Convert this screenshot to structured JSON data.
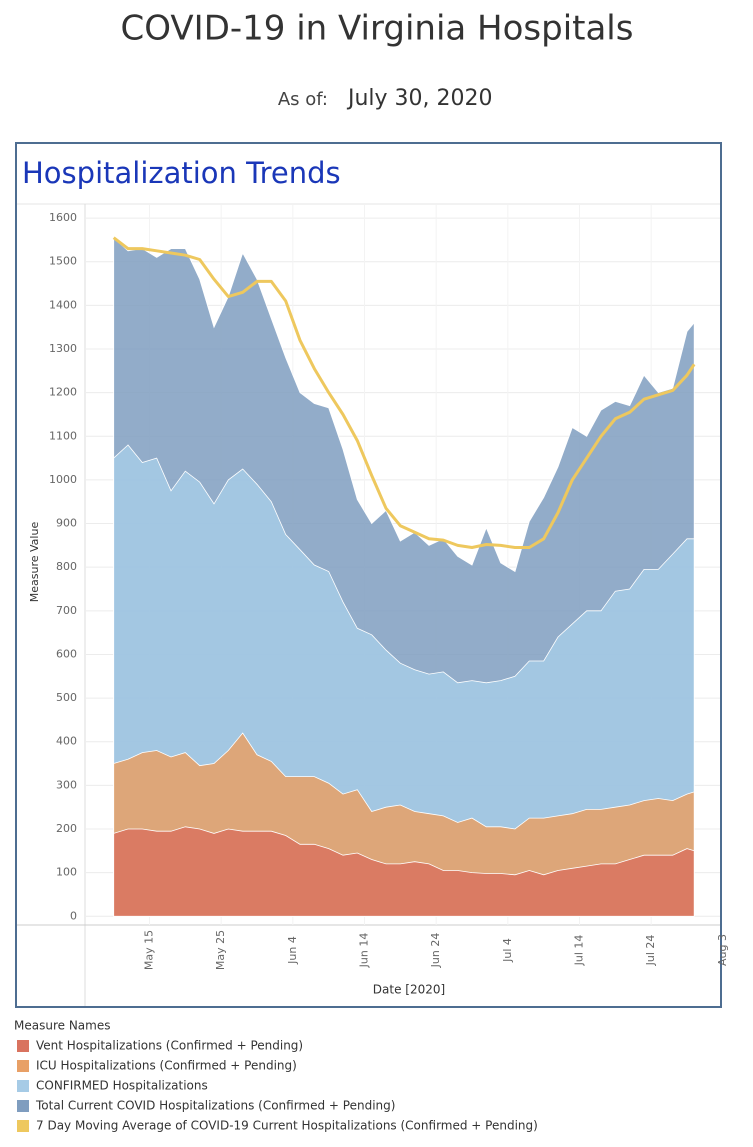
{
  "title": "COVID-19 in Virginia Hospitals",
  "as_of_label": "As of:",
  "as_of_date": "July 30, 2020",
  "chart_data": {
    "type": "area",
    "title": "Hospitalization Trends",
    "y_label": "Measure Value",
    "x_label": "Date [2020]",
    "legend_title": "Measure Names",
    "grid": true,
    "legend": "bottom-left",
    "x": [
      "2020-05-10",
      "2020-05-12",
      "2020-05-14",
      "2020-05-16",
      "2020-05-18",
      "2020-05-20",
      "2020-05-22",
      "2020-05-24",
      "2020-05-26",
      "2020-05-28",
      "2020-05-30",
      "2020-06-01",
      "2020-06-03",
      "2020-06-05",
      "2020-06-07",
      "2020-06-09",
      "2020-06-11",
      "2020-06-13",
      "2020-06-15",
      "2020-06-17",
      "2020-06-19",
      "2020-06-21",
      "2020-06-23",
      "2020-06-25",
      "2020-06-27",
      "2020-06-29",
      "2020-07-01",
      "2020-07-03",
      "2020-07-05",
      "2020-07-07",
      "2020-07-09",
      "2020-07-11",
      "2020-07-13",
      "2020-07-15",
      "2020-07-17",
      "2020-07-19",
      "2020-07-21",
      "2020-07-23",
      "2020-07-25",
      "2020-07-27",
      "2020-07-29",
      "2020-07-30"
    ],
    "xlim": [
      "2020-05-06",
      "2020-08-04"
    ],
    "xticks": [
      {
        "value": "2020-05-15",
        "label": "May 15"
      },
      {
        "value": "2020-05-25",
        "label": "May 25"
      },
      {
        "value": "2020-06-04",
        "label": "Jun 4"
      },
      {
        "value": "2020-06-14",
        "label": "Jun 14"
      },
      {
        "value": "2020-06-24",
        "label": "Jun 24"
      },
      {
        "value": "2020-07-04",
        "label": "Jul 4"
      },
      {
        "value": "2020-07-14",
        "label": "Jul 14"
      },
      {
        "value": "2020-07-24",
        "label": "Jul 24"
      },
      {
        "value": "2020-08-03",
        "label": "Aug 3"
      }
    ],
    "ylim": [
      -20,
      1630
    ],
    "yticks": [
      0,
      100,
      200,
      300,
      400,
      500,
      600,
      700,
      800,
      900,
      1000,
      1100,
      1200,
      1300,
      1400,
      1500,
      1600
    ],
    "series": [
      {
        "name": "Vent Hospitalizations (Confirmed + Pending)",
        "color": "#d9735f",
        "kind": "area",
        "values": [
          190,
          200,
          200,
          195,
          195,
          205,
          200,
          190,
          200,
          195,
          195,
          195,
          185,
          165,
          165,
          155,
          140,
          145,
          130,
          120,
          120,
          125,
          120,
          105,
          105,
          100,
          98,
          98,
          95,
          105,
          95,
          105,
          110,
          115,
          120,
          120,
          130,
          140,
          140,
          140,
          155,
          150
        ]
      },
      {
        "name": "ICU Hospitalizations (Confirmed + Pending)",
        "color": "#e8a066",
        "kind": "area",
        "values": [
          350,
          360,
          375,
          380,
          365,
          375,
          345,
          350,
          380,
          420,
          370,
          355,
          320,
          320,
          320,
          305,
          280,
          290,
          240,
          250,
          255,
          240,
          235,
          230,
          215,
          225,
          205,
          205,
          200,
          225,
          225,
          230,
          235,
          245,
          245,
          250,
          255,
          265,
          270,
          265,
          280,
          285
        ]
      },
      {
        "name": "CONFIRMED Hospitalizations",
        "color": "#a6cbe6",
        "kind": "area",
        "values": [
          1050,
          1080,
          1040,
          1050,
          975,
          1020,
          995,
          945,
          1000,
          1025,
          990,
          950,
          875,
          840,
          805,
          790,
          720,
          660,
          645,
          610,
          580,
          565,
          555,
          560,
          535,
          540,
          535,
          540,
          550,
          585,
          585,
          640,
          670,
          700,
          700,
          745,
          750,
          795,
          795,
          830,
          865,
          865
        ]
      },
      {
        "name": "Total Current COVID Hospitalizations (Confirmed + Pending)",
        "color": "#7f9dbf",
        "kind": "area",
        "values": [
          1555,
          1525,
          1530,
          1510,
          1530,
          1530,
          1460,
          1350,
          1420,
          1520,
          1460,
          1370,
          1280,
          1200,
          1175,
          1165,
          1070,
          955,
          900,
          930,
          860,
          880,
          850,
          865,
          825,
          805,
          890,
          810,
          790,
          905,
          960,
          1030,
          1120,
          1100,
          1160,
          1180,
          1170,
          1240,
          1200,
          1210,
          1340,
          1360
        ]
      },
      {
        "name": "7 Day Moving Average of COVID-19 Current Hospitalizations (Confirmed + Pending)",
        "color": "#eec85e",
        "kind": "line",
        "values": [
          1555,
          1530,
          1530,
          1525,
          1520,
          1515,
          1505,
          1460,
          1420,
          1430,
          1455,
          1455,
          1410,
          1320,
          1255,
          1200,
          1150,
          1090,
          1010,
          935,
          895,
          880,
          865,
          862,
          850,
          845,
          852,
          850,
          845,
          845,
          865,
          925,
          1000,
          1050,
          1100,
          1140,
          1155,
          1185,
          1195,
          1205,
          1240,
          1265
        ]
      }
    ]
  }
}
